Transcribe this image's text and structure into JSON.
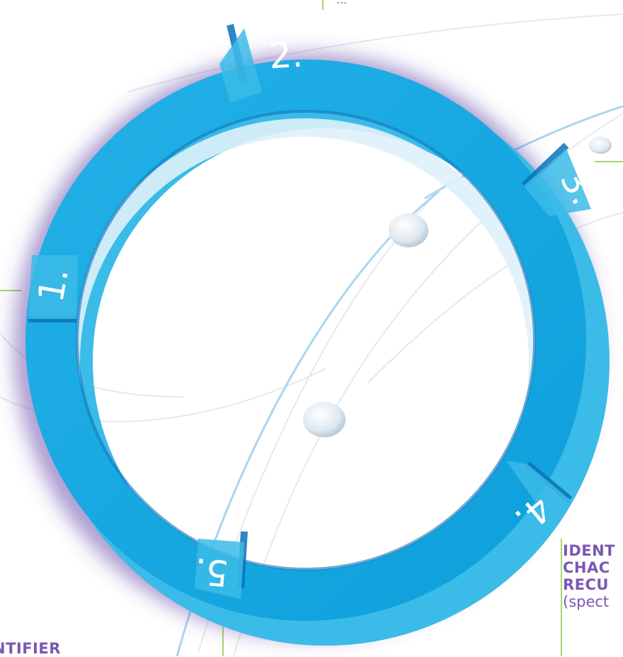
{
  "diagram": {
    "steps": [
      {
        "number": "1."
      },
      {
        "number": "2."
      },
      {
        "number": "3."
      },
      {
        "number": "4."
      },
      {
        "number": "5."
      }
    ],
    "labels": {
      "top_partial": "...",
      "step4_lines": [
        "IDENT",
        "CHAC",
        "RECU"
      ],
      "step4_note": "(spect",
      "step5_line": "NTIFIER"
    },
    "colors": {
      "ring_main": "#1aa7e0",
      "ring_light": "#3bbbe8",
      "ring_dark": "#0b72b8",
      "ring_shadow": "#5b3fa6",
      "text_purple": "#7b57b3",
      "leader_green": "#8cc63f"
    }
  }
}
